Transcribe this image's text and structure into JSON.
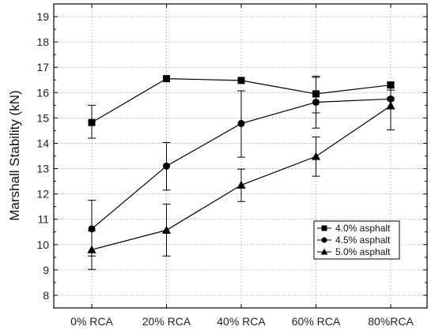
{
  "chart_data": {
    "type": "line",
    "title": "",
    "xlabel": "",
    "ylabel": "Marshall Stability (kN)",
    "categories": [
      "0% RCA",
      "20% RCA",
      "40% RCA",
      "60% RCA",
      "80%RCA"
    ],
    "ylim": [
      7.5,
      19.5
    ],
    "yticks": [
      8,
      9,
      10,
      11,
      12,
      13,
      14,
      15,
      16,
      17,
      18,
      19
    ],
    "grid": true,
    "legend_position": "bottom-right",
    "series": [
      {
        "name": "4.0% asphalt",
        "marker": "square",
        "values": [
          14.82,
          16.55,
          16.48,
          15.95,
          16.3
        ],
        "error_low": [
          14.2,
          16.55,
          16.48,
          15.2,
          16.1
        ],
        "error_high": [
          15.5,
          16.55,
          16.48,
          16.65,
          16.4
        ]
      },
      {
        "name": "4.5% asphalt",
        "marker": "circle",
        "values": [
          10.62,
          13.1,
          14.78,
          15.62,
          15.75
        ],
        "error_low": [
          9.55,
          12.15,
          13.45,
          14.6,
          15.7
        ],
        "error_high": [
          11.75,
          14.03,
          16.07,
          16.6,
          15.8
        ]
      },
      {
        "name": "5.0% asphalt",
        "marker": "triangle",
        "values": [
          9.8,
          10.57,
          12.35,
          13.48,
          15.48
        ],
        "error_low": [
          9.02,
          9.55,
          11.7,
          12.7,
          14.53
        ],
        "error_high": [
          10.55,
          11.6,
          12.98,
          14.25,
          16.2
        ]
      }
    ]
  }
}
